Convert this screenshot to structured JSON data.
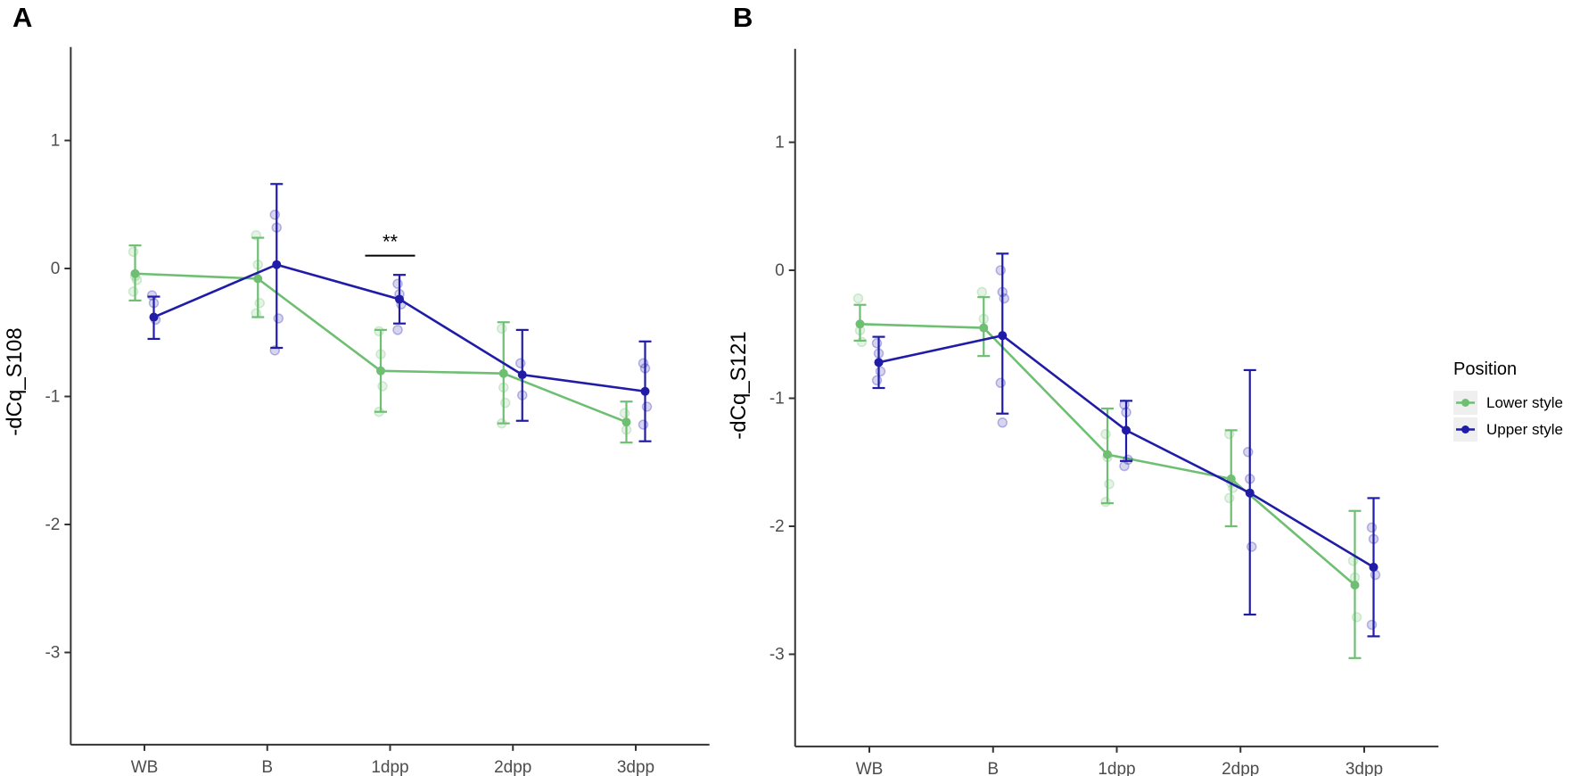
{
  "figure": {
    "background": "#ffffff"
  },
  "legend": {
    "title": "Position",
    "items": [
      {
        "label": "Lower style",
        "color": "#6fbf73"
      },
      {
        "label": "Upper style",
        "color": "#201ca8"
      }
    ]
  },
  "chart_data": [
    {
      "type": "line",
      "panel_label": "A",
      "ylabel": "-dCq_S108",
      "xlabel": "",
      "categories": [
        "WB",
        "B",
        "1dpp",
        "2dpp",
        "3dpp"
      ],
      "yticks": [
        1,
        0,
        -1,
        -2,
        -3
      ],
      "ylim": [
        -3.72,
        1.73
      ],
      "grid": false,
      "legend_position": "right-outside",
      "series": [
        {
          "name": "Lower style",
          "color": "#6fbf73",
          "means": [
            -0.04,
            -0.08,
            -0.8,
            -0.82,
            -1.2
          ],
          "ci_high": [
            0.18,
            0.24,
            -0.48,
            -0.42,
            -1.04
          ],
          "ci_low": [
            -0.25,
            -0.38,
            -1.12,
            -1.21,
            -1.36
          ],
          "points": [
            [
              0.13,
              -0.06,
              -0.09,
              -0.18
            ],
            [
              0.26,
              0.03,
              -0.27,
              -0.35
            ],
            [
              -0.49,
              -0.67,
              -0.92,
              -1.12
            ],
            [
              -0.47,
              -0.93,
              -1.05,
              -1.21
            ],
            [
              -1.13,
              -1.26
            ]
          ]
        },
        {
          "name": "Upper style",
          "color": "#201ca8",
          "means": [
            -0.38,
            0.03,
            -0.24,
            -0.83,
            -0.96
          ],
          "ci_high": [
            -0.22,
            0.66,
            -0.05,
            -0.48,
            -0.57
          ],
          "ci_low": [
            -0.55,
            -0.62,
            -0.43,
            -1.19,
            -1.35
          ],
          "points": [
            [
              -0.21,
              -0.27,
              -0.4
            ],
            [
              0.42,
              0.32,
              -0.39,
              -0.64
            ],
            [
              -0.12,
              -0.2,
              -0.28,
              -0.48
            ],
            [
              -0.74,
              -0.99
            ],
            [
              -0.74,
              -0.78,
              -1.08,
              -1.22
            ]
          ]
        }
      ],
      "annotations": [
        {
          "label": "**",
          "category": "1dpp",
          "y": 0.1
        }
      ]
    },
    {
      "type": "line",
      "panel_label": "B",
      "ylabel": "-dCq_S121",
      "xlabel": "",
      "categories": [
        "WB",
        "B",
        "1dpp",
        "2dpp",
        "3dpp"
      ],
      "yticks": [
        1,
        0,
        -1,
        -2,
        -3
      ],
      "ylim": [
        -3.72,
        1.73
      ],
      "grid": false,
      "legend_position": "right-outside",
      "series": [
        {
          "name": "Lower style",
          "color": "#6fbf73",
          "means": [
            -0.42,
            -0.45,
            -1.44,
            -1.63,
            -2.46
          ],
          "ci_high": [
            -0.27,
            -0.21,
            -1.08,
            -1.25,
            -1.88
          ],
          "ci_low": [
            -0.55,
            -0.67,
            -1.82,
            -2.0,
            -3.03
          ],
          "points": [
            [
              -0.22,
              -0.47,
              -0.56
            ],
            [
              -0.17,
              -0.38
            ],
            [
              -1.28,
              -1.46,
              -1.67,
              -1.81
            ],
            [
              -1.28,
              -1.66,
              -1.7,
              -1.78
            ],
            [
              -2.27,
              -2.4,
              -2.71
            ]
          ]
        },
        {
          "name": "Upper style",
          "color": "#201ca8",
          "means": [
            -0.72,
            -0.51,
            -1.25,
            -1.74,
            -2.32
          ],
          "ci_high": [
            -0.52,
            0.13,
            -1.02,
            -0.78,
            -1.78
          ],
          "ci_low": [
            -0.92,
            -1.12,
            -1.49,
            -2.69,
            -2.86
          ],
          "points": [
            [
              -0.57,
              -0.65,
              -0.79,
              -0.86
            ],
            [
              0.0,
              -0.17,
              -0.22,
              -0.88,
              -1.19
            ],
            [
              -1.05,
              -1.11,
              -1.48,
              -1.53
            ],
            [
              -1.42,
              -1.63,
              -2.16
            ],
            [
              -2.01,
              -2.1,
              -2.38,
              -2.77
            ]
          ]
        }
      ],
      "annotations": []
    }
  ]
}
